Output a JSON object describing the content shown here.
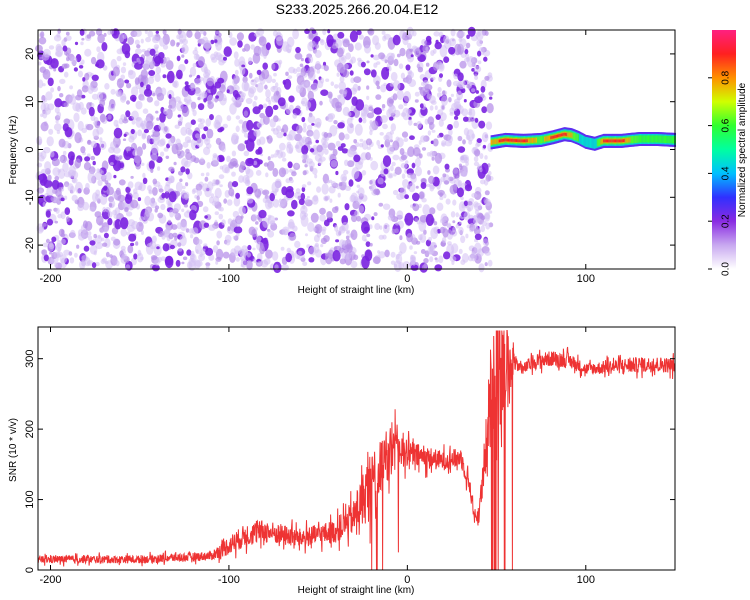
{
  "title": "S233.2025.266.20.04.E12",
  "chart_data": [
    {
      "type": "heatmap",
      "name": "spectrogram",
      "xlabel": "Height of straight line (km)",
      "ylabel": "Frequency (Hz)",
      "xlim": [
        -207,
        150
      ],
      "ylim": [
        -25,
        25
      ],
      "xticks": [
        -200,
        -100,
        0,
        100
      ],
      "yticks": [
        -20,
        -10,
        0,
        10,
        20
      ],
      "noise_region_x": [
        -207,
        47
      ],
      "signal_region_x": [
        47,
        150
      ],
      "signal_track": {
        "x": [
          47,
          55,
          65,
          75,
          82,
          88,
          92,
          96,
          100,
          105,
          110,
          120,
          130,
          140,
          150
        ],
        "freq": [
          1.5,
          2.0,
          1.8,
          2.0,
          2.6,
          3.2,
          3.0,
          2.4,
          1.6,
          1.2,
          1.8,
          1.8,
          2.2,
          2.2,
          2.0
        ],
        "peak_amp": [
          0.8,
          0.95,
          0.95,
          0.7,
          0.95,
          0.95,
          0.8,
          0.6,
          0.5,
          0.5,
          0.9,
          0.95,
          0.6,
          0.6,
          0.6
        ]
      },
      "colorbar": {
        "label": "Normalized spectral amplitude",
        "range": [
          0,
          1
        ],
        "ticks": [
          "0.0",
          "0.2",
          "0.4",
          "0.6",
          "0.8"
        ],
        "colors": [
          "#ffffff",
          "#c8a8f0",
          "#8a2be2",
          "#3030ff",
          "#00c0ff",
          "#00ffa0",
          "#30ff30",
          "#d0ff00",
          "#ff9000",
          "#ff2020",
          "#ff2080"
        ]
      }
    },
    {
      "type": "line",
      "name": "snr",
      "xlabel": "Height of straight line (km)",
      "ylabel": "SNR (10 * v/v)",
      "xlim": [
        -207,
        150
      ],
      "ylim": [
        0,
        345
      ],
      "xticks": [
        -200,
        -100,
        0,
        100
      ],
      "yticks": [
        0,
        100,
        200,
        300
      ],
      "line_color": "#ee3333",
      "series": [
        {
          "name": "SNR",
          "x": [
            -207,
            -150,
            -110,
            -100,
            -90,
            -80,
            -60,
            -40,
            -30,
            -25,
            -20,
            -15,
            -10,
            -5,
            0,
            10,
            20,
            30,
            35,
            38,
            40,
            45,
            47,
            50,
            55,
            60,
            65,
            70,
            80,
            90,
            100,
            120,
            140,
            150
          ],
          "mean": [
            15,
            15,
            20,
            35,
            50,
            55,
            45,
            55,
            75,
            100,
            125,
            140,
            165,
            175,
            165,
            160,
            155,
            160,
            120,
            70,
            80,
            180,
            260,
            280,
            290,
            295,
            285,
            295,
            300,
            298,
            285,
            290,
            292,
            290
          ],
          "spread": [
            10,
            10,
            12,
            25,
            30,
            30,
            25,
            30,
            45,
            70,
            90,
            80,
            60,
            60,
            35,
            30,
            25,
            25,
            25,
            20,
            30,
            60,
            150,
            150,
            150,
            20,
            15,
            20,
            20,
            20,
            15,
            20,
            20,
            20
          ]
        }
      ]
    }
  ]
}
